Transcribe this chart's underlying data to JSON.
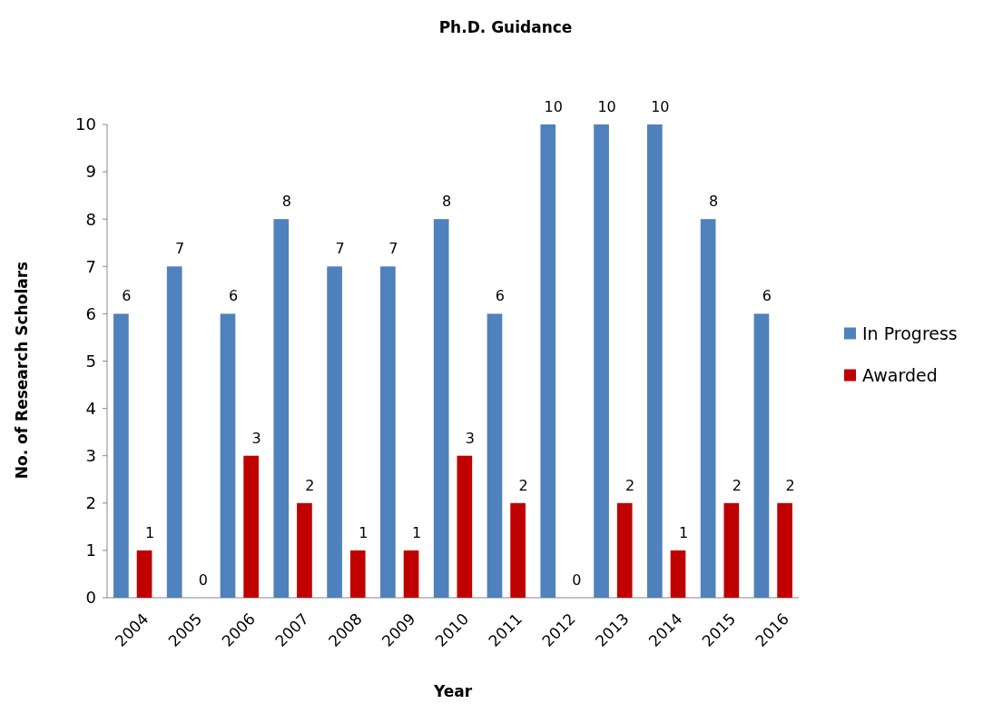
{
  "chart_data": {
    "type": "bar",
    "title": "Ph.D. Guidance",
    "xlabel": "Year",
    "ylabel": "No. of Research Scholars",
    "categories": [
      "2004",
      "2005",
      "2006",
      "2007",
      "2008",
      "2009",
      "2010",
      "2011",
      "2012",
      "2013",
      "2014",
      "2015",
      "2016"
    ],
    "series": [
      {
        "name": "In Progress",
        "color": "#4f81bd",
        "values": [
          6,
          7,
          6,
          8,
          7,
          7,
          8,
          6,
          10,
          10,
          10,
          8,
          6
        ]
      },
      {
        "name": "Awarded",
        "color": "#c00000",
        "values": [
          1,
          0,
          3,
          2,
          1,
          1,
          3,
          2,
          0,
          2,
          1,
          2,
          2
        ]
      }
    ],
    "ylim": [
      0,
      10
    ],
    "yticks": [
      0,
      1,
      2,
      3,
      4,
      5,
      6,
      7,
      8,
      9,
      10
    ],
    "grid": false,
    "legend": "right",
    "data_labels": true
  }
}
